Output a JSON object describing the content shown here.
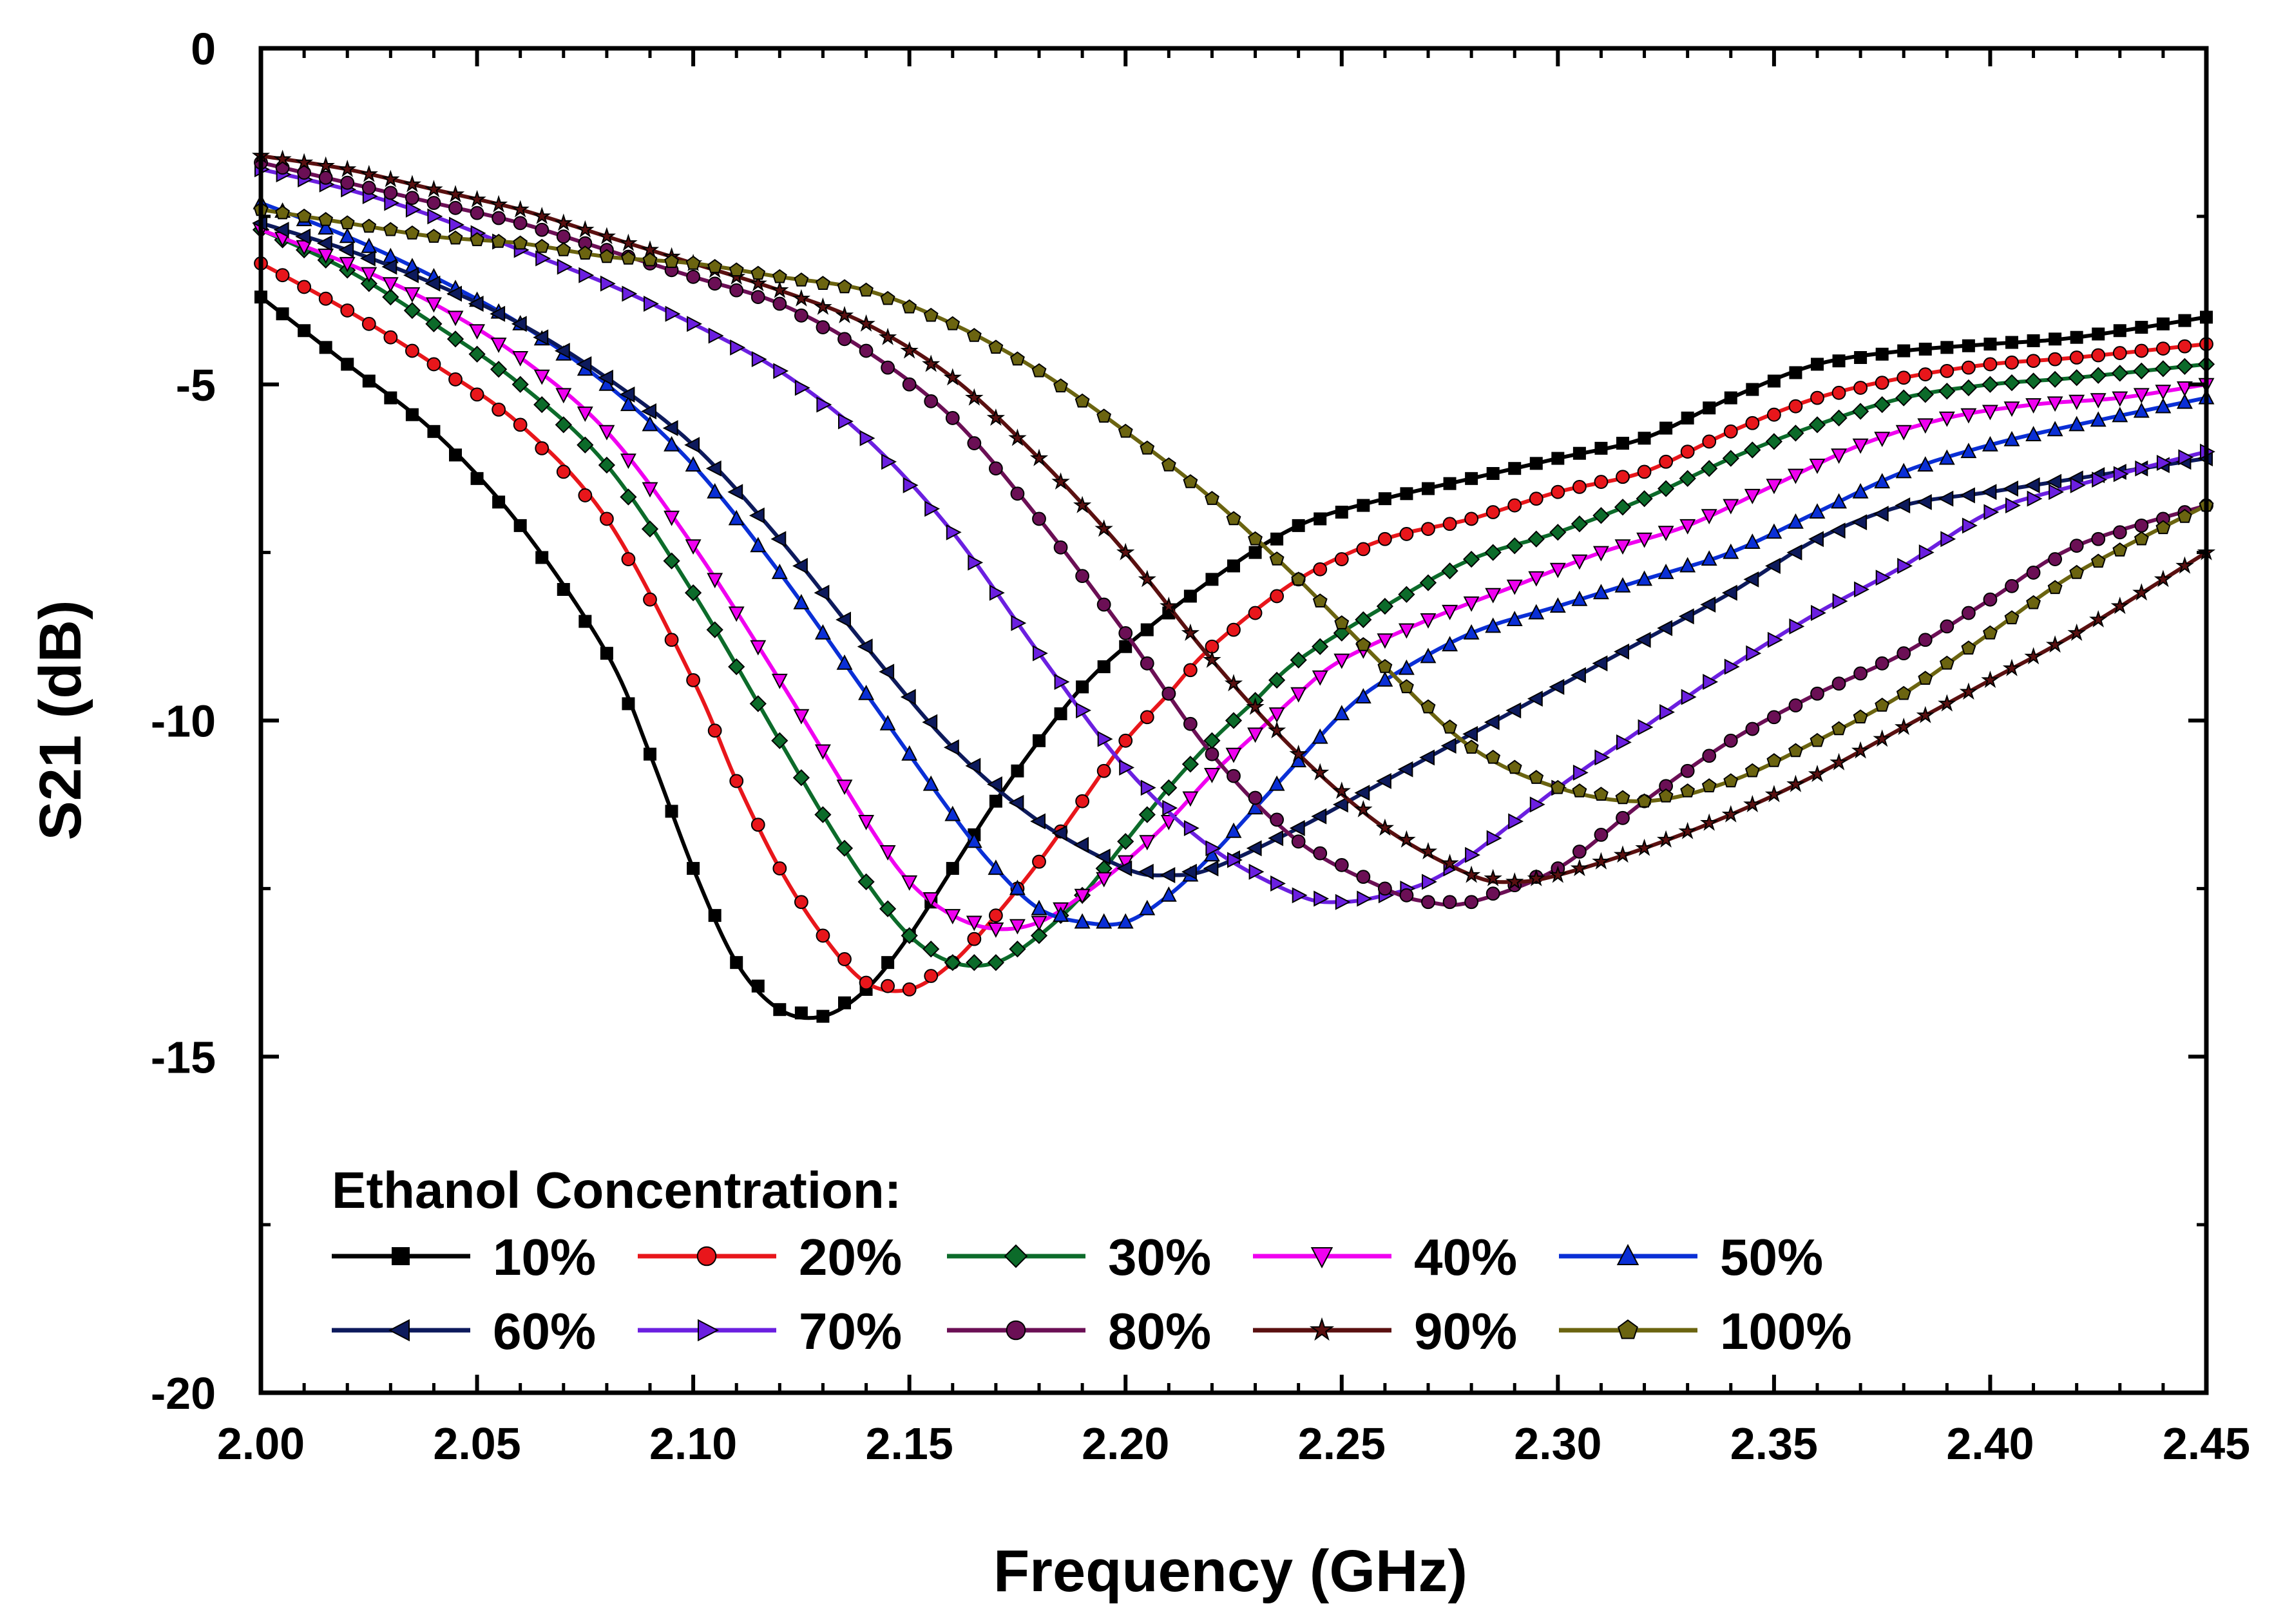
{
  "chart_data": {
    "type": "line",
    "title": "",
    "xlabel": "Frequency (GHz)",
    "ylabel": "S21 (dB)",
    "xlim": [
      2.0,
      2.45
    ],
    "ylim": [
      -20,
      0
    ],
    "xticks": [
      2.0,
      2.05,
      2.1,
      2.15,
      2.2,
      2.25,
      2.3,
      2.35,
      2.4,
      2.45
    ],
    "xtick_labels": [
      "2.00",
      "2.05",
      "2.10",
      "2.15",
      "2.20",
      "2.25",
      "2.30",
      "2.35",
      "2.40",
      "2.45"
    ],
    "yticks": [
      0,
      -5,
      -10,
      -15,
      -20
    ],
    "ytick_labels": [
      "0",
      "-5",
      "-10",
      "-15",
      "-20"
    ],
    "legend_title": "Ethanol Concentration:",
    "legend_position": "bottom-left",
    "grid": false,
    "series": [
      {
        "name": "10%",
        "color": "#000000",
        "marker": "square",
        "points": [
          [
            2.0,
            -3.7
          ],
          [
            2.02,
            -4.7
          ],
          [
            2.04,
            -5.7
          ],
          [
            2.06,
            -7.1
          ],
          [
            2.08,
            -9.0
          ],
          [
            2.09,
            -10.5
          ],
          [
            2.1,
            -12.2
          ],
          [
            2.11,
            -13.6
          ],
          [
            2.12,
            -14.3
          ],
          [
            2.13,
            -14.4
          ],
          [
            2.14,
            -14.0
          ],
          [
            2.15,
            -13.2
          ],
          [
            2.16,
            -12.2
          ],
          [
            2.17,
            -11.2
          ],
          [
            2.18,
            -10.3
          ],
          [
            2.19,
            -9.5
          ],
          [
            2.2,
            -8.9
          ],
          [
            2.22,
            -7.9
          ],
          [
            2.24,
            -7.1
          ],
          [
            2.26,
            -6.7
          ],
          [
            2.28,
            -6.4
          ],
          [
            2.3,
            -6.1
          ],
          [
            2.32,
            -5.8
          ],
          [
            2.34,
            -5.2
          ],
          [
            2.36,
            -4.7
          ],
          [
            2.38,
            -4.5
          ],
          [
            2.4,
            -4.4
          ],
          [
            2.42,
            -4.3
          ],
          [
            2.45,
            -4.0
          ]
        ]
      },
      {
        "name": "20%",
        "color": "#e8161b",
        "marker": "circle",
        "points": [
          [
            2.0,
            -3.2
          ],
          [
            2.02,
            -3.9
          ],
          [
            2.04,
            -4.7
          ],
          [
            2.06,
            -5.6
          ],
          [
            2.08,
            -7.0
          ],
          [
            2.1,
            -9.4
          ],
          [
            2.11,
            -10.9
          ],
          [
            2.12,
            -12.2
          ],
          [
            2.13,
            -13.2
          ],
          [
            2.14,
            -13.9
          ],
          [
            2.15,
            -14.0
          ],
          [
            2.16,
            -13.6
          ],
          [
            2.17,
            -12.9
          ],
          [
            2.18,
            -12.1
          ],
          [
            2.19,
            -11.2
          ],
          [
            2.2,
            -10.3
          ],
          [
            2.21,
            -9.6
          ],
          [
            2.22,
            -8.9
          ],
          [
            2.24,
            -7.9
          ],
          [
            2.26,
            -7.3
          ],
          [
            2.28,
            -7.0
          ],
          [
            2.3,
            -6.6
          ],
          [
            2.32,
            -6.3
          ],
          [
            2.34,
            -5.7
          ],
          [
            2.36,
            -5.2
          ],
          [
            2.38,
            -4.9
          ],
          [
            2.4,
            -4.7
          ],
          [
            2.42,
            -4.6
          ],
          [
            2.45,
            -4.4
          ]
        ]
      },
      {
        "name": "30%",
        "color": "#0c6b2a",
        "marker": "diamond",
        "points": [
          [
            2.0,
            -2.7
          ],
          [
            2.02,
            -3.3
          ],
          [
            2.04,
            -4.1
          ],
          [
            2.06,
            -5.0
          ],
          [
            2.08,
            -6.2
          ],
          [
            2.1,
            -8.1
          ],
          [
            2.12,
            -10.3
          ],
          [
            2.13,
            -11.4
          ],
          [
            2.14,
            -12.4
          ],
          [
            2.15,
            -13.2
          ],
          [
            2.16,
            -13.6
          ],
          [
            2.17,
            -13.6
          ],
          [
            2.18,
            -13.2
          ],
          [
            2.19,
            -12.6
          ],
          [
            2.2,
            -11.8
          ],
          [
            2.21,
            -11.0
          ],
          [
            2.22,
            -10.3
          ],
          [
            2.23,
            -9.7
          ],
          [
            2.24,
            -9.1
          ],
          [
            2.26,
            -8.3
          ],
          [
            2.28,
            -7.6
          ],
          [
            2.3,
            -7.2
          ],
          [
            2.32,
            -6.7
          ],
          [
            2.34,
            -6.1
          ],
          [
            2.36,
            -5.6
          ],
          [
            2.38,
            -5.2
          ],
          [
            2.4,
            -5.0
          ],
          [
            2.42,
            -4.9
          ],
          [
            2.45,
            -4.7
          ]
        ]
      },
      {
        "name": "40%",
        "color": "#f000f0",
        "marker": "triangle-down",
        "points": [
          [
            2.0,
            -2.7
          ],
          [
            2.02,
            -3.2
          ],
          [
            2.04,
            -3.8
          ],
          [
            2.06,
            -4.6
          ],
          [
            2.08,
            -5.7
          ],
          [
            2.1,
            -7.4
          ],
          [
            2.12,
            -9.4
          ],
          [
            2.14,
            -11.5
          ],
          [
            2.15,
            -12.4
          ],
          [
            2.16,
            -12.9
          ],
          [
            2.17,
            -13.1
          ],
          [
            2.18,
            -13.0
          ],
          [
            2.19,
            -12.6
          ],
          [
            2.2,
            -12.1
          ],
          [
            2.21,
            -11.5
          ],
          [
            2.22,
            -10.8
          ],
          [
            2.23,
            -10.2
          ],
          [
            2.24,
            -9.6
          ],
          [
            2.25,
            -9.1
          ],
          [
            2.27,
            -8.5
          ],
          [
            2.29,
            -8.0
          ],
          [
            2.31,
            -7.5
          ],
          [
            2.33,
            -7.1
          ],
          [
            2.35,
            -6.5
          ],
          [
            2.37,
            -5.9
          ],
          [
            2.39,
            -5.5
          ],
          [
            2.41,
            -5.3
          ],
          [
            2.43,
            -5.2
          ],
          [
            2.45,
            -5.0
          ]
        ]
      },
      {
        "name": "50%",
        "color": "#0a2fd6",
        "marker": "triangle-up",
        "points": [
          [
            2.0,
            -2.3
          ],
          [
            2.02,
            -2.8
          ],
          [
            2.04,
            -3.4
          ],
          [
            2.06,
            -4.1
          ],
          [
            2.08,
            -5.0
          ],
          [
            2.1,
            -6.2
          ],
          [
            2.12,
            -7.8
          ],
          [
            2.14,
            -9.6
          ],
          [
            2.16,
            -11.4
          ],
          [
            2.17,
            -12.2
          ],
          [
            2.18,
            -12.8
          ],
          [
            2.19,
            -13.0
          ],
          [
            2.2,
            -13.0
          ],
          [
            2.21,
            -12.6
          ],
          [
            2.22,
            -12.0
          ],
          [
            2.23,
            -11.3
          ],
          [
            2.24,
            -10.6
          ],
          [
            2.25,
            -9.9
          ],
          [
            2.26,
            -9.4
          ],
          [
            2.28,
            -8.7
          ],
          [
            2.3,
            -8.3
          ],
          [
            2.32,
            -7.9
          ],
          [
            2.34,
            -7.5
          ],
          [
            2.36,
            -6.9
          ],
          [
            2.38,
            -6.3
          ],
          [
            2.4,
            -5.9
          ],
          [
            2.42,
            -5.6
          ],
          [
            2.45,
            -5.2
          ]
        ]
      },
      {
        "name": "60%",
        "color": "#0d1a5c",
        "marker": "triangle-left",
        "points": [
          [
            2.0,
            -2.6
          ],
          [
            2.02,
            -3.0
          ],
          [
            2.04,
            -3.5
          ],
          [
            2.06,
            -4.1
          ],
          [
            2.08,
            -4.9
          ],
          [
            2.1,
            -5.9
          ],
          [
            2.12,
            -7.3
          ],
          [
            2.14,
            -8.9
          ],
          [
            2.16,
            -10.4
          ],
          [
            2.18,
            -11.5
          ],
          [
            2.2,
            -12.2
          ],
          [
            2.21,
            -12.3
          ],
          [
            2.22,
            -12.2
          ],
          [
            2.24,
            -11.6
          ],
          [
            2.26,
            -10.9
          ],
          [
            2.28,
            -10.2
          ],
          [
            2.3,
            -9.5
          ],
          [
            2.32,
            -8.8
          ],
          [
            2.34,
            -8.1
          ],
          [
            2.36,
            -7.3
          ],
          [
            2.38,
            -6.8
          ],
          [
            2.4,
            -6.6
          ],
          [
            2.42,
            -6.4
          ],
          [
            2.45,
            -6.1
          ]
        ]
      },
      {
        "name": "70%",
        "color": "#6b1fe0",
        "marker": "triangle-right",
        "points": [
          [
            2.0,
            -1.8
          ],
          [
            2.02,
            -2.1
          ],
          [
            2.04,
            -2.5
          ],
          [
            2.06,
            -3.0
          ],
          [
            2.08,
            -3.5
          ],
          [
            2.1,
            -4.1
          ],
          [
            2.12,
            -4.8
          ],
          [
            2.14,
            -5.8
          ],
          [
            2.16,
            -7.2
          ],
          [
            2.18,
            -9.0
          ],
          [
            2.2,
            -10.7
          ],
          [
            2.22,
            -11.9
          ],
          [
            2.24,
            -12.6
          ],
          [
            2.25,
            -12.7
          ],
          [
            2.26,
            -12.6
          ],
          [
            2.27,
            -12.4
          ],
          [
            2.28,
            -12.0
          ],
          [
            2.3,
            -11.0
          ],
          [
            2.32,
            -10.1
          ],
          [
            2.34,
            -9.2
          ],
          [
            2.36,
            -8.4
          ],
          [
            2.38,
            -7.7
          ],
          [
            2.4,
            -6.9
          ],
          [
            2.42,
            -6.5
          ],
          [
            2.45,
            -6.0
          ]
        ]
      },
      {
        "name": "80%",
        "color": "#6b0f55",
        "marker": "circle",
        "points": [
          [
            2.0,
            -1.7
          ],
          [
            2.02,
            -2.0
          ],
          [
            2.04,
            -2.3
          ],
          [
            2.06,
            -2.6
          ],
          [
            2.08,
            -3.0
          ],
          [
            2.1,
            -3.4
          ],
          [
            2.12,
            -3.8
          ],
          [
            2.14,
            -4.5
          ],
          [
            2.16,
            -5.5
          ],
          [
            2.18,
            -7.0
          ],
          [
            2.2,
            -8.7
          ],
          [
            2.22,
            -10.5
          ],
          [
            2.24,
            -11.8
          ],
          [
            2.26,
            -12.5
          ],
          [
            2.27,
            -12.7
          ],
          [
            2.28,
            -12.7
          ],
          [
            2.3,
            -12.2
          ],
          [
            2.32,
            -11.2
          ],
          [
            2.34,
            -10.3
          ],
          [
            2.36,
            -9.6
          ],
          [
            2.38,
            -9.0
          ],
          [
            2.4,
            -8.2
          ],
          [
            2.42,
            -7.4
          ],
          [
            2.45,
            -6.8
          ]
        ]
      },
      {
        "name": "90%",
        "color": "#5a1010",
        "marker": "star",
        "points": [
          [
            2.0,
            -1.6
          ],
          [
            2.02,
            -1.8
          ],
          [
            2.04,
            -2.1
          ],
          [
            2.06,
            -2.4
          ],
          [
            2.08,
            -2.8
          ],
          [
            2.1,
            -3.2
          ],
          [
            2.12,
            -3.6
          ],
          [
            2.14,
            -4.1
          ],
          [
            2.16,
            -4.9
          ],
          [
            2.18,
            -6.1
          ],
          [
            2.2,
            -7.5
          ],
          [
            2.22,
            -9.1
          ],
          [
            2.24,
            -10.5
          ],
          [
            2.26,
            -11.6
          ],
          [
            2.28,
            -12.3
          ],
          [
            2.29,
            -12.4
          ],
          [
            2.3,
            -12.3
          ],
          [
            2.32,
            -11.9
          ],
          [
            2.34,
            -11.4
          ],
          [
            2.36,
            -10.8
          ],
          [
            2.38,
            -10.1
          ],
          [
            2.4,
            -9.4
          ],
          [
            2.42,
            -8.7
          ],
          [
            2.45,
            -7.5
          ]
        ]
      },
      {
        "name": "100%",
        "color": "#6b6410",
        "marker": "pentagon",
        "points": [
          [
            2.0,
            -2.4
          ],
          [
            2.02,
            -2.6
          ],
          [
            2.04,
            -2.8
          ],
          [
            2.06,
            -2.9
          ],
          [
            2.08,
            -3.1
          ],
          [
            2.1,
            -3.2
          ],
          [
            2.12,
            -3.4
          ],
          [
            2.14,
            -3.6
          ],
          [
            2.16,
            -4.1
          ],
          [
            2.18,
            -4.8
          ],
          [
            2.2,
            -5.7
          ],
          [
            2.22,
            -6.7
          ],
          [
            2.24,
            -7.9
          ],
          [
            2.26,
            -9.2
          ],
          [
            2.28,
            -10.4
          ],
          [
            2.3,
            -11.0
          ],
          [
            2.32,
            -11.2
          ],
          [
            2.34,
            -10.9
          ],
          [
            2.36,
            -10.3
          ],
          [
            2.38,
            -9.6
          ],
          [
            2.4,
            -8.7
          ],
          [
            2.42,
            -7.8
          ],
          [
            2.45,
            -6.8
          ]
        ]
      }
    ]
  }
}
